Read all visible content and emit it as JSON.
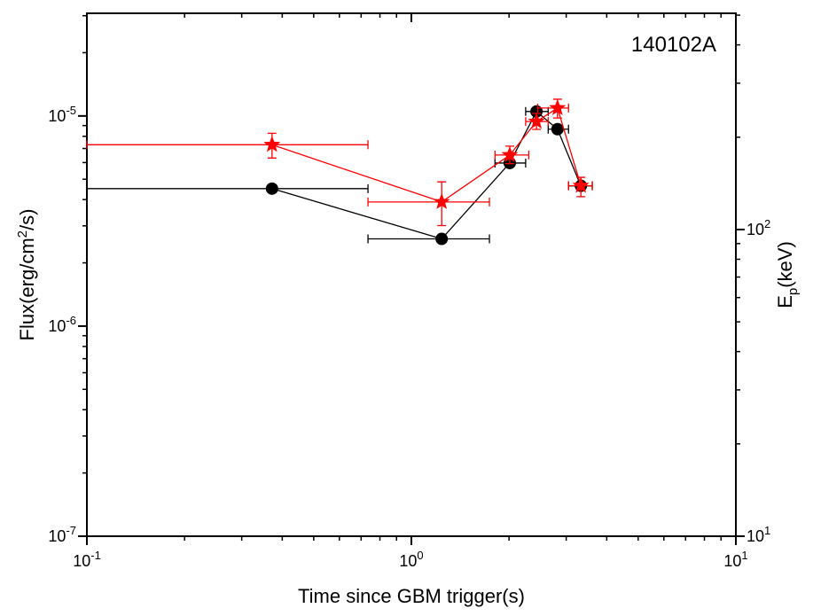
{
  "chart_data": {
    "type": "scatter",
    "annotation": "140102A",
    "xlabel": "Time since GBM trigger(s)",
    "ylabel": {
      "text": "Flux(erg/cm",
      "sup": "2",
      "tail": "/s)"
    },
    "y2label": {
      "text": "E",
      "sub": "p",
      "tail": "(keV)"
    },
    "xscale": "log",
    "yscale": "log",
    "y2scale": "log",
    "xlim": [
      0.1,
      10
    ],
    "ylim": [
      1e-07,
      3.08e-05
    ],
    "y2lim": [
      10,
      507
    ],
    "xticks": [
      {
        "value": 0.1,
        "label": "10",
        "exponent": "-1"
      },
      {
        "value": 1,
        "label": "10",
        "exponent": "0"
      },
      {
        "value": 10,
        "label": "10",
        "exponent": "1"
      }
    ],
    "yticks": [
      {
        "value": 1e-07,
        "label": "10",
        "exponent": "-7"
      },
      {
        "value": 1e-06,
        "label": "10",
        "exponent": "-6"
      },
      {
        "value": 1e-05,
        "label": "10",
        "exponent": "-5"
      }
    ],
    "y2ticks": [
      {
        "value": 10,
        "label": "10",
        "exponent": "1"
      },
      {
        "value": 100,
        "label": "10",
        "exponent": "2"
      }
    ],
    "series": [
      {
        "color": "#000000",
        "marker": "circle",
        "axis": "y",
        "x": [
          0.372,
          1.24,
          2.01,
          2.43,
          2.82,
          3.33
        ],
        "values": [
          4.51e-06,
          2.6e-06,
          5.97e-06,
          1.05e-05,
          8.65e-06,
          4.65e-06
        ],
        "x_low": [
          0.1,
          0.735,
          1.81,
          2.25,
          2.64,
          3.05
        ],
        "x_high": [
          0.735,
          1.74,
          2.25,
          2.64,
          3.05,
          3.61
        ]
      },
      {
        "color": "#ff0000",
        "marker": "star",
        "axis": "y2",
        "x": [
          0.372,
          1.24,
          2.01,
          2.43,
          2.82,
          3.33
        ],
        "values": [
          189,
          123,
          175,
          225,
          249,
          139
        ],
        "x_low": [
          0.1,
          0.735,
          1.81,
          2.25,
          2.45,
          3.05
        ],
        "x_high": [
          0.735,
          1.74,
          2.3,
          2.64,
          3.05,
          3.61
        ],
        "y_low": [
          171,
          103,
          164,
          212,
          231,
          128
        ],
        "y_high": [
          206,
          143,
          187,
          239,
          266,
          148
        ]
      }
    ]
  }
}
